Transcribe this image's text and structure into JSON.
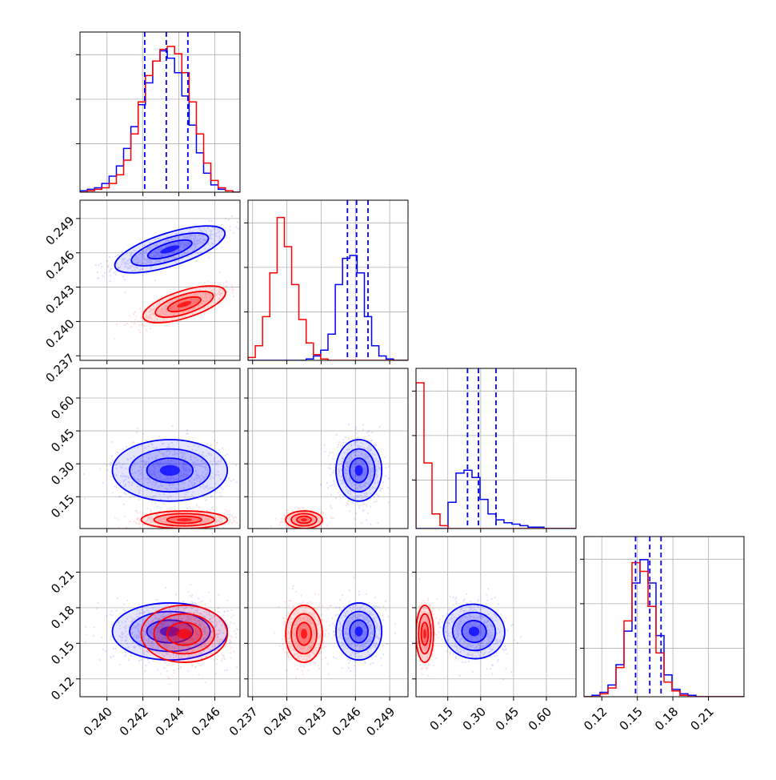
{
  "colors": {
    "series_a": "#0000ff",
    "series_b": "#ff0000",
    "frame": "#000000",
    "grid": "#b0b0b0"
  },
  "chart_data": {
    "type": "corner",
    "grid": true,
    "series": [
      {
        "name": "",
        "color": "#0000ff",
        "mean": [
          0.2435,
          0.2463,
          0.27,
          0.16
        ],
        "sd": [
          0.0016,
          0.001,
          0.07,
          0.012
        ],
        "quantile_lines": [
          [
            0.2421,
            0.2433,
            0.2445
          ],
          [
            0.2453,
            0.2461,
            0.2471
          ],
          [
            0.24,
            0.29,
            0.37
          ],
          [
            0.1485,
            0.1605,
            0.17
          ]
        ]
      },
      {
        "name": "",
        "color": "#ff0000",
        "mean": [
          0.2443,
          0.2415,
          0.045,
          0.158
        ],
        "sd": [
          0.0012,
          0.0008,
          0.02,
          0.012
        ]
      }
    ],
    "parameters": [
      {
        "range": [
          0.2385,
          0.2474
        ],
        "ticks": [
          "0.240",
          "0.242",
          "0.244",
          "0.246"
        ]
      },
      {
        "range": [
          0.2366,
          0.2506
        ],
        "ticks": [
          "0.237",
          "0.240",
          "0.243",
          "0.246",
          "0.249"
        ]
      },
      {
        "range": [
          0.005,
          0.735
        ],
        "ticks": [
          "0.15",
          "0.30",
          "0.45",
          "0.60"
        ]
      },
      {
        "range": [
          0.105,
          0.24
        ],
        "ticks": [
          "0.12",
          "0.15",
          "0.18",
          "0.21"
        ]
      }
    ],
    "marginals": [
      {
        "bins": [
          0.2385,
          0.24,
          0.2415,
          0.243,
          0.2445,
          0.246,
          0.2474
        ],
        "blue": [
          0.01,
          0.02,
          0.03,
          0.06,
          0.11,
          0.18,
          0.3,
          0.45,
          0.6,
          0.75,
          0.9,
          0.97,
          0.92,
          0.82,
          0.66,
          0.46,
          0.27,
          0.13,
          0.05,
          0.02,
          0.01,
          0.0
        ],
        "red": [
          0.0,
          0.01,
          0.02,
          0.03,
          0.06,
          0.12,
          0.22,
          0.4,
          0.62,
          0.8,
          0.9,
          0.98,
          1.0,
          0.95,
          0.82,
          0.62,
          0.4,
          0.2,
          0.08,
          0.03,
          0.01,
          0.0
        ]
      },
      {
        "blue": [
          0.0,
          0.0,
          0.0,
          0.0,
          0.0,
          0.0,
          0.0,
          0.0,
          0.01,
          0.03,
          0.07,
          0.18,
          0.52,
          0.7,
          0.72,
          0.6,
          0.3,
          0.1,
          0.03,
          0.01,
          0.0,
          0.0
        ],
        "red": [
          0.02,
          0.1,
          0.3,
          0.6,
          0.98,
          0.78,
          0.52,
          0.28,
          0.12,
          0.04,
          0.01,
          0.0,
          0.0,
          0.0,
          0.0,
          0.0,
          0.0,
          0.0,
          0.0,
          0.0,
          0.0,
          0.0
        ]
      },
      {
        "blue": [
          0.0,
          0.0,
          0.0,
          0.0,
          0.18,
          0.38,
          0.4,
          0.35,
          0.2,
          0.1,
          0.06,
          0.04,
          0.03,
          0.02,
          0.01,
          0.01,
          0.0,
          0.0,
          0.0,
          0.0
        ],
        "red": [
          1.0,
          0.45,
          0.1,
          0.02,
          0.0,
          0.0,
          0.0,
          0.0,
          0.0,
          0.0,
          0.0,
          0.0,
          0.0,
          0.0,
          0.0,
          0.0,
          0.0,
          0.0,
          0.0,
          0.0
        ]
      },
      {
        "blue": [
          0.0,
          0.01,
          0.03,
          0.08,
          0.22,
          0.45,
          0.78,
          0.94,
          0.78,
          0.42,
          0.15,
          0.05,
          0.02,
          0.01,
          0.0,
          0.0,
          0.0,
          0.0,
          0.0,
          0.0
        ],
        "red": [
          0.0,
          0.0,
          0.02,
          0.06,
          0.2,
          0.52,
          0.92,
          0.86,
          0.62,
          0.3,
          0.1,
          0.04,
          0.01,
          0.0,
          0.0,
          0.0,
          0.0,
          0.0,
          0.0,
          0.0
        ]
      }
    ]
  }
}
